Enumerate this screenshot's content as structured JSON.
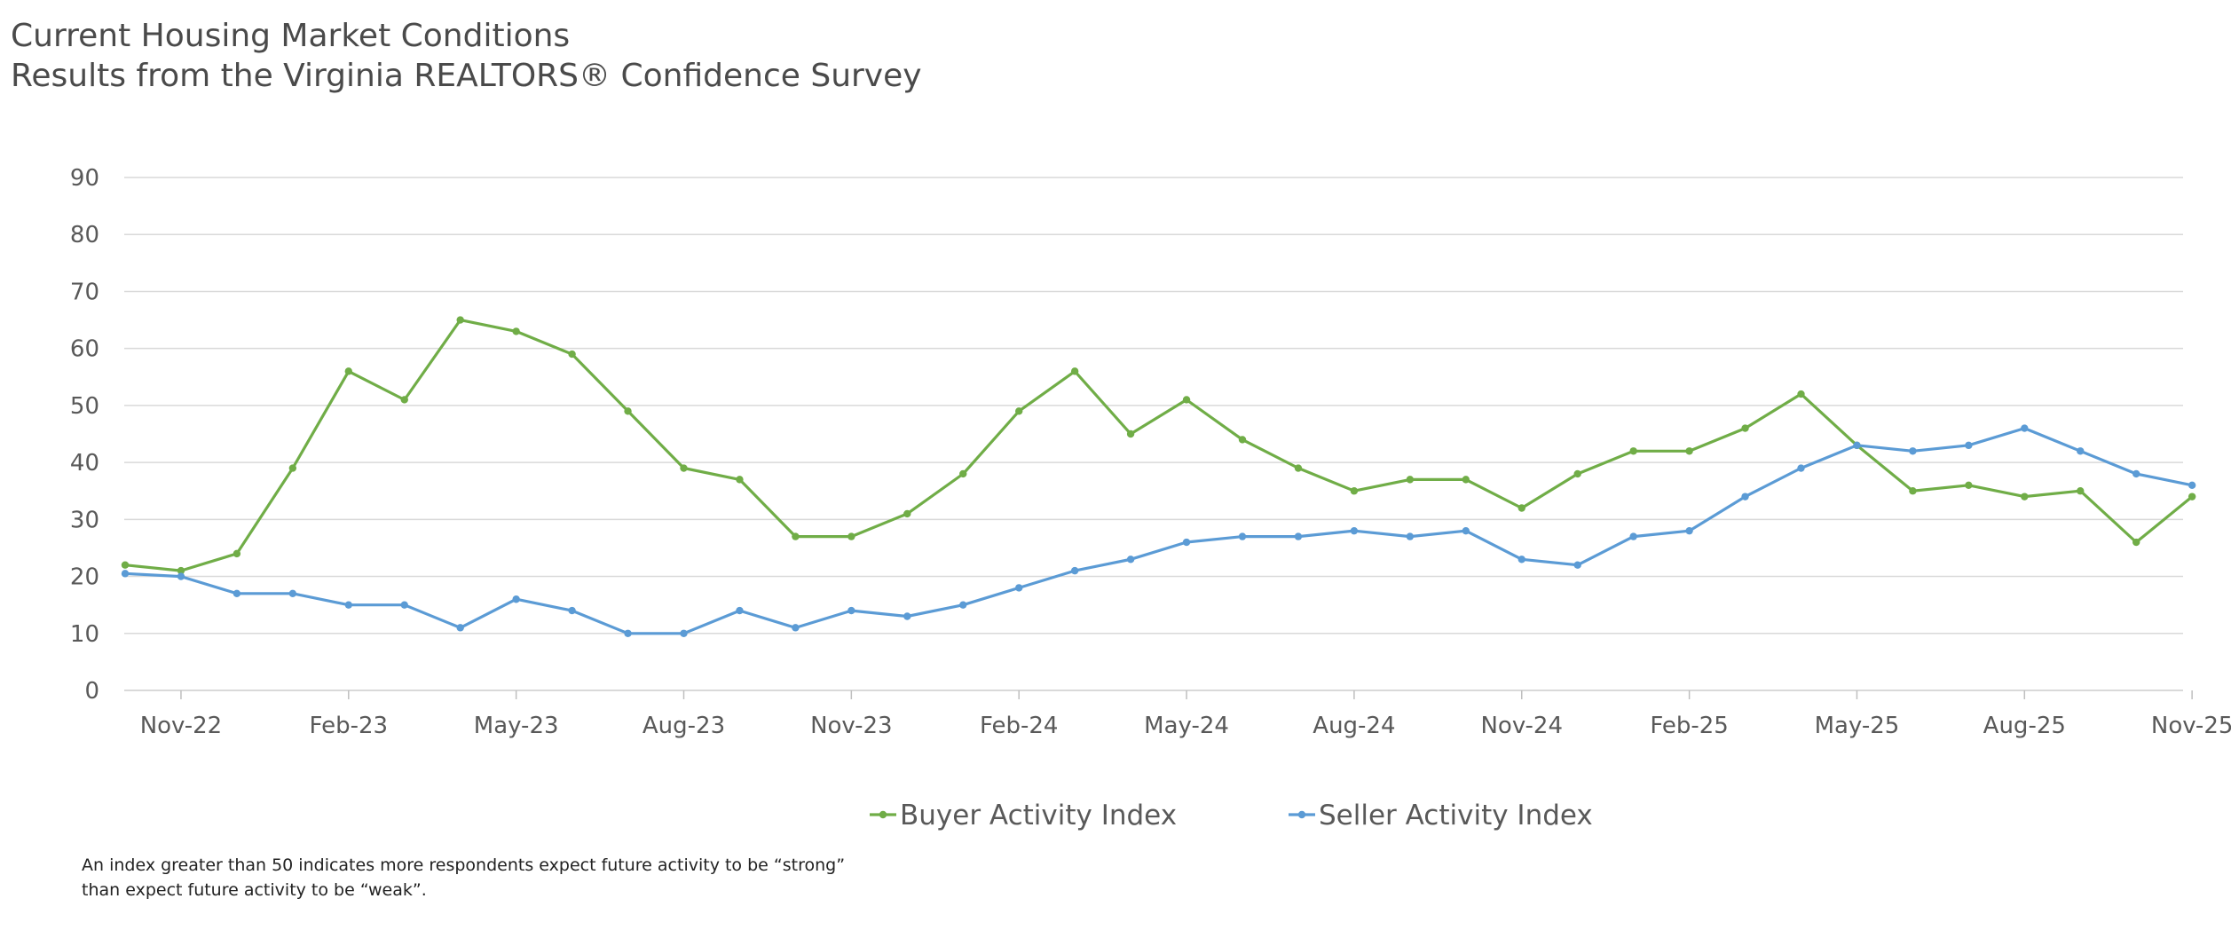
{
  "title_lines": [
    "Current Housing Market Conditions",
    "Results from the Virginia REALTORS® Confidence Survey"
  ],
  "footnote_lines": [
    "An index greater than 50 indicates more respondents expect future activity to be “strong”",
    "than expect future activity to be “weak”."
  ],
  "chart_data": {
    "type": "line",
    "title": "Current Housing Market Conditions",
    "subtitle": "Results from the Virginia REALTORS® Confidence Survey",
    "xlabel": "",
    "ylabel": "",
    "ylim": [
      0,
      90
    ],
    "yticks": [
      0,
      10,
      20,
      30,
      40,
      50,
      60,
      70,
      80,
      90
    ],
    "grid": true,
    "legend_position": "bottom",
    "x": [
      "Oct-22",
      "Nov-22",
      "Dec-22",
      "Jan-23",
      "Feb-23",
      "Mar-23",
      "Apr-23",
      "May-23",
      "Jun-23",
      "Jul-23",
      "Aug-23",
      "Sep-23",
      "Oct-23",
      "Nov-23",
      "Dec-23",
      "Jan-24",
      "Feb-24",
      "Mar-24",
      "Apr-24",
      "May-24",
      "Jun-24",
      "Jul-24",
      "Aug-24",
      "Sep-24",
      "Oct-24",
      "Nov-24",
      "Dec-24",
      "Jan-25",
      "Feb-25",
      "Mar-25",
      "Apr-25",
      "May-25",
      "Jun-25",
      "Jul-25",
      "Aug-25",
      "Sep-25",
      "Oct-25",
      "Nov-25"
    ],
    "tick_labels": [
      "Nov-22",
      "Feb-23",
      "May-23",
      "Aug-23",
      "Nov-23",
      "Feb-24",
      "May-24",
      "Aug-24",
      "Nov-24",
      "Feb-25",
      "May-25",
      "Aug-25",
      "Nov-25"
    ],
    "series": [
      {
        "name": "Buyer Activity Index",
        "color": "#70ad47",
        "values": [
          22,
          21,
          24,
          39,
          56,
          51,
          65,
          63,
          59,
          49,
          39,
          37,
          27,
          27,
          31,
          38,
          49,
          56,
          45,
          51,
          44,
          39,
          35,
          37,
          37,
          32,
          38,
          42,
          42,
          46,
          52,
          43,
          35,
          36,
          34,
          35,
          26,
          34
        ]
      },
      {
        "name": "Seller Activity Index",
        "color": "#5b9bd5",
        "values": [
          20.5,
          20,
          17,
          17,
          15,
          15,
          11,
          16,
          14,
          10,
          10,
          14,
          11,
          14,
          13,
          15,
          18,
          21,
          23,
          26,
          27,
          27,
          28,
          27,
          28,
          23,
          22,
          27,
          28,
          34,
          39,
          43,
          42,
          43,
          46,
          42,
          38,
          36
        ]
      }
    ]
  }
}
